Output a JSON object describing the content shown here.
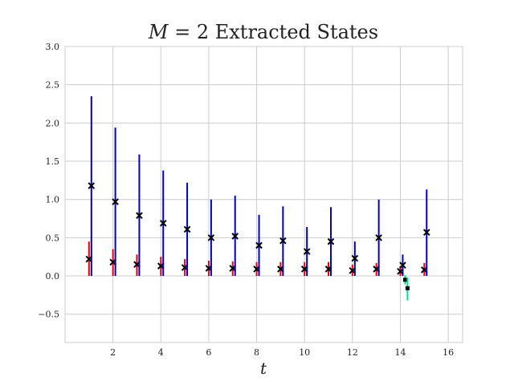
{
  "chart_data": {
    "type": "scatter",
    "title": "M = 2 Extracted States",
    "title_parts": {
      "var": "M",
      "rest": " = 2 Extracted States"
    },
    "xlabel": "t",
    "ylabel": "",
    "xlim": [
      0.0,
      16.6
    ],
    "ylim": [
      -0.87,
      3.0
    ],
    "xticks": [
      2,
      4,
      6,
      8,
      10,
      12,
      14,
      16
    ],
    "xtick_labels": [
      "2",
      "4",
      "6",
      "8",
      "10",
      "12",
      "14",
      "16"
    ],
    "yticks": [
      -0.5,
      0.0,
      0.5,
      1.0,
      1.5,
      2.0,
      2.5,
      3.0
    ],
    "ytick_labels": [
      "−0.5",
      "0.0",
      "0.5",
      "1.0",
      "1.5",
      "2.0",
      "2.5",
      "3.0"
    ],
    "grid": true,
    "series": [
      {
        "color": "#e8000b",
        "marker": "x",
        "x": [
          1.0,
          2.0,
          3.0,
          4.0,
          5.0,
          6.0,
          7.0,
          8.0,
          9.0,
          10.0,
          11.0,
          12.0,
          13.0,
          14.0,
          15.0
        ],
        "y": [
          0.22,
          0.18,
          0.15,
          0.13,
          0.11,
          0.1,
          0.1,
          0.09,
          0.09,
          0.09,
          0.09,
          0.07,
          0.09,
          0.06,
          0.08
        ],
        "err_low": [
          0.22,
          0.18,
          0.15,
          0.13,
          0.11,
          0.1,
          0.1,
          0.09,
          0.09,
          0.09,
          0.09,
          0.07,
          0.09,
          0.06,
          0.08
        ],
        "err_high": [
          0.23,
          0.17,
          0.13,
          0.12,
          0.11,
          0.1,
          0.09,
          0.09,
          0.09,
          0.09,
          0.09,
          0.08,
          0.08,
          0.07,
          0.09
        ]
      },
      {
        "color": "#0000cc",
        "marker": "x",
        "x": [
          1.1,
          2.1,
          3.1,
          4.1,
          5.1,
          6.1,
          7.1,
          8.1,
          9.1,
          10.1,
          11.1,
          12.1,
          13.1,
          14.1,
          15.1
        ],
        "y": [
          1.18,
          0.97,
          0.79,
          0.69,
          0.61,
          0.5,
          0.52,
          0.4,
          0.46,
          0.32,
          0.45,
          0.23,
          0.5,
          0.14,
          0.57
        ],
        "err_low": [
          1.18,
          0.97,
          0.79,
          0.69,
          0.61,
          0.5,
          0.52,
          0.4,
          0.46,
          0.32,
          0.45,
          0.23,
          0.5,
          0.14,
          0.57
        ],
        "err_high": [
          1.17,
          0.97,
          0.8,
          0.69,
          0.61,
          0.5,
          0.53,
          0.4,
          0.45,
          0.32,
          0.45,
          0.22,
          0.5,
          0.14,
          0.56
        ]
      },
      {
        "color": "#00e09a",
        "marker": "point",
        "x": [
          14.2,
          14.3
        ],
        "y": [
          -0.05,
          -0.16
        ],
        "err_low": [
          0.06,
          0.16
        ],
        "err_high": [
          0.06,
          0.14
        ]
      }
    ]
  }
}
